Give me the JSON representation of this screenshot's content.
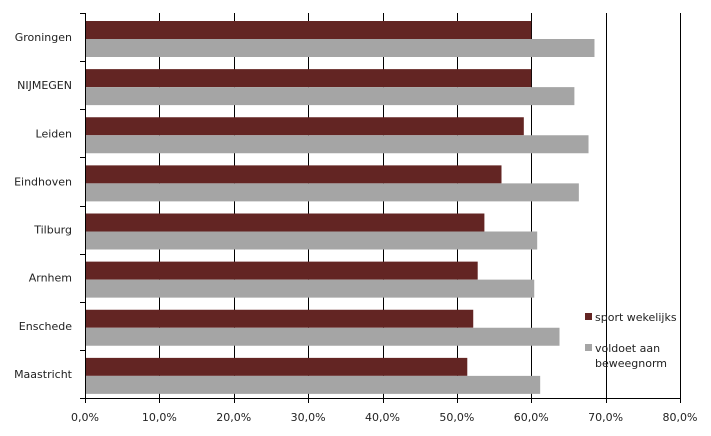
{
  "chart_data": {
    "type": "bar",
    "orientation": "horizontal",
    "categories": [
      "Groningen",
      "NIJMEGEN",
      "Leiden",
      "Eindhoven",
      "Tilburg",
      "Arnhem",
      "Enschede",
      "Maastricht"
    ],
    "series": [
      {
        "name": "sport wekelijks",
        "color": "#632523",
        "values": [
          60.0,
          60.0,
          59.0,
          56.0,
          53.7,
          52.8,
          52.2,
          51.4
        ]
      },
      {
        "name": "voldoet aan beweegnorm",
        "color": "#a5a5a5",
        "values": [
          68.5,
          65.8,
          67.7,
          66.4,
          60.8,
          60.4,
          63.8,
          61.2
        ]
      }
    ],
    "xlim": [
      0,
      80
    ],
    "xticks": [
      0,
      10,
      20,
      30,
      40,
      50,
      60,
      70,
      80
    ],
    "xtick_labels": [
      "0,0%",
      "10,0%",
      "20,0%",
      "30,0%",
      "40,0%",
      "50,0%",
      "60,0%",
      "70,0%",
      "80,0%"
    ],
    "xlabel": "",
    "ylabel": "",
    "title": "",
    "grid": "vertical",
    "legend": {
      "position": "right",
      "entries": [
        {
          "label_lines": [
            "sport wekelijks"
          ],
          "color": "#632523"
        },
        {
          "label_lines": [
            "voldoet aan",
            "beweegnorm"
          ],
          "color": "#a5a5a5"
        }
      ]
    },
    "colors": {
      "grid": "#000000",
      "axis": "#000000"
    }
  }
}
